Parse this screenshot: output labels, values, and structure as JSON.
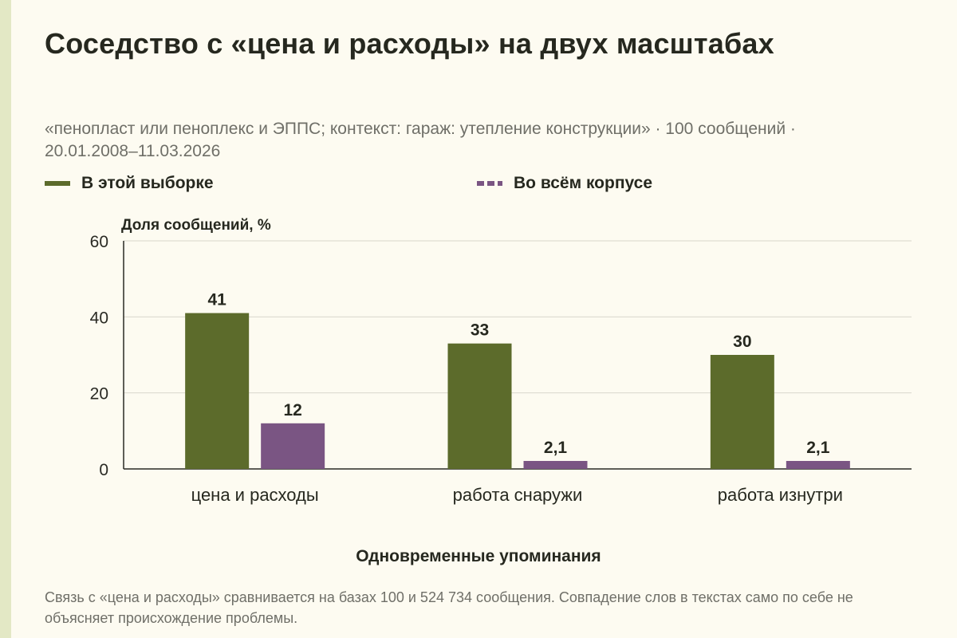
{
  "title": "Соседство с «цена и расходы» на двух масштабах",
  "subtitle": "«пенопласт или пеноплекс и ЭППС; контекст: гараж: утепление конструкции» · 100 сообщений · 20.01.2008–11.03.2026",
  "footnote": "Связь с «цена и расходы» сравнивается на базах 100 и 524 734 сообщения. Совпадение слов в текстах само по себе не объясняет происхождение проблемы.",
  "colors": {
    "sample": "#5c6b2b",
    "corpus": "#7a5583"
  },
  "chart_data": {
    "type": "bar",
    "title": "Соседство с «цена и расходы» на двух масштабах",
    "xlabel": "Одновременные упоминания",
    "ylabel": "Доля сообщений, %",
    "ylim": [
      0,
      60
    ],
    "yticks": [
      0,
      20,
      40,
      60
    ],
    "grid": true,
    "legend_position": "top",
    "categories": [
      "цена и расходы",
      "работа снаружи",
      "работа изнутри"
    ],
    "series": [
      {
        "name": "В этой выборке",
        "values": [
          41,
          33,
          30
        ],
        "labels": [
          "41",
          "33",
          "30"
        ],
        "color": "#5c6b2b",
        "legend_style": "solid"
      },
      {
        "name": "Во всём корпусе",
        "values": [
          12,
          2.1,
          2.1
        ],
        "labels": [
          "12",
          "2,1",
          "2,1"
        ],
        "color": "#7a5583",
        "legend_style": "dashed"
      }
    ]
  }
}
